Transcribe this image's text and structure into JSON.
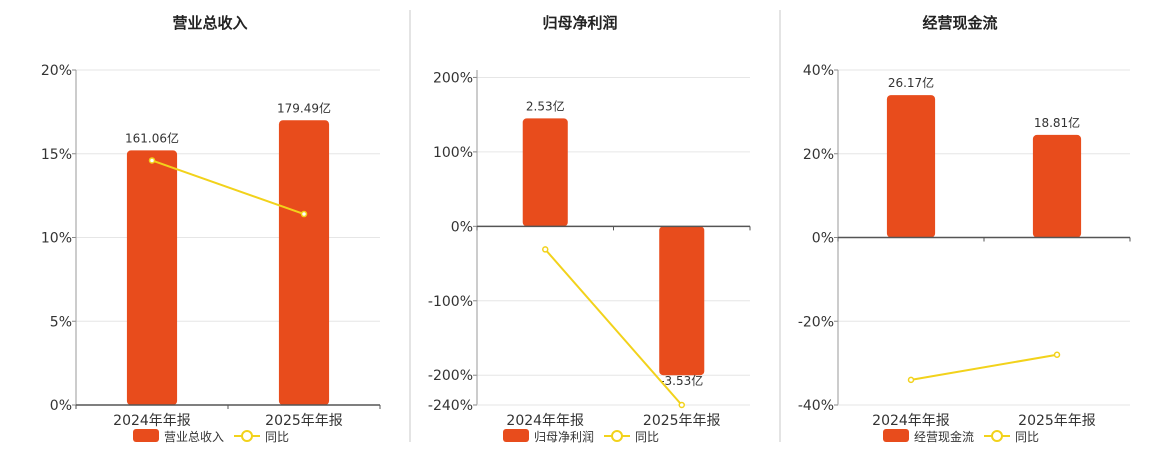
{
  "theme": {
    "bar_color": "#E84C1C",
    "line_color": "#F2D21B",
    "axis_color": "#555555",
    "grid_color": "#e6e6e6",
    "divider_color": "#c8c8c8"
  },
  "chart_data": [
    {
      "type": "bar",
      "title": "营业总收入",
      "categories": [
        "2024年年报",
        "2025年年报"
      ],
      "series": [
        {
          "name": "营业总收入",
          "kind": "bar",
          "values": [
            15.2,
            17.0
          ],
          "labels": [
            "161.06亿",
            "179.49亿"
          ]
        },
        {
          "name": "同比",
          "kind": "line",
          "values": [
            14.6,
            11.4
          ]
        }
      ],
      "ylim": [
        0,
        20
      ],
      "yticks": [
        0,
        5,
        10,
        15,
        20
      ],
      "ytick_labels": [
        "0%",
        "5%",
        "10%",
        "15%",
        "20%"
      ],
      "grid": true,
      "legend_position": "bottom"
    },
    {
      "type": "bar",
      "title": "归母净利润",
      "categories": [
        "2024年年报",
        "2025年年报"
      ],
      "series": [
        {
          "name": "归母净利润",
          "kind": "bar",
          "values": [
            145,
            -200
          ],
          "labels": [
            "2.53亿",
            "-3.53亿"
          ]
        },
        {
          "name": "同比",
          "kind": "line",
          "values": [
            -31,
            -240
          ]
        }
      ],
      "ylim": [
        -240,
        210
      ],
      "yticks": [
        -240,
        -200,
        -100,
        0,
        100,
        200
      ],
      "ytick_labels": [
        "-240%",
        "-200%",
        "-100%",
        "0%",
        "100%",
        "200%"
      ],
      "grid": true,
      "legend_position": "bottom"
    },
    {
      "type": "bar",
      "title": "经营现金流",
      "categories": [
        "2024年年报",
        "2025年年报"
      ],
      "series": [
        {
          "name": "经营现金流",
          "kind": "bar",
          "values": [
            34,
            24.5
          ],
          "labels": [
            "26.17亿",
            "18.81亿"
          ]
        },
        {
          "name": "同比",
          "kind": "line",
          "values": [
            -34,
            -28
          ]
        }
      ],
      "ylim": [
        -40,
        40
      ],
      "yticks": [
        -40,
        -20,
        0,
        20,
        40
      ],
      "ytick_labels": [
        "-40%",
        "-20%",
        "0%",
        "20%",
        "40%"
      ],
      "grid": true,
      "legend_position": "bottom"
    }
  ]
}
